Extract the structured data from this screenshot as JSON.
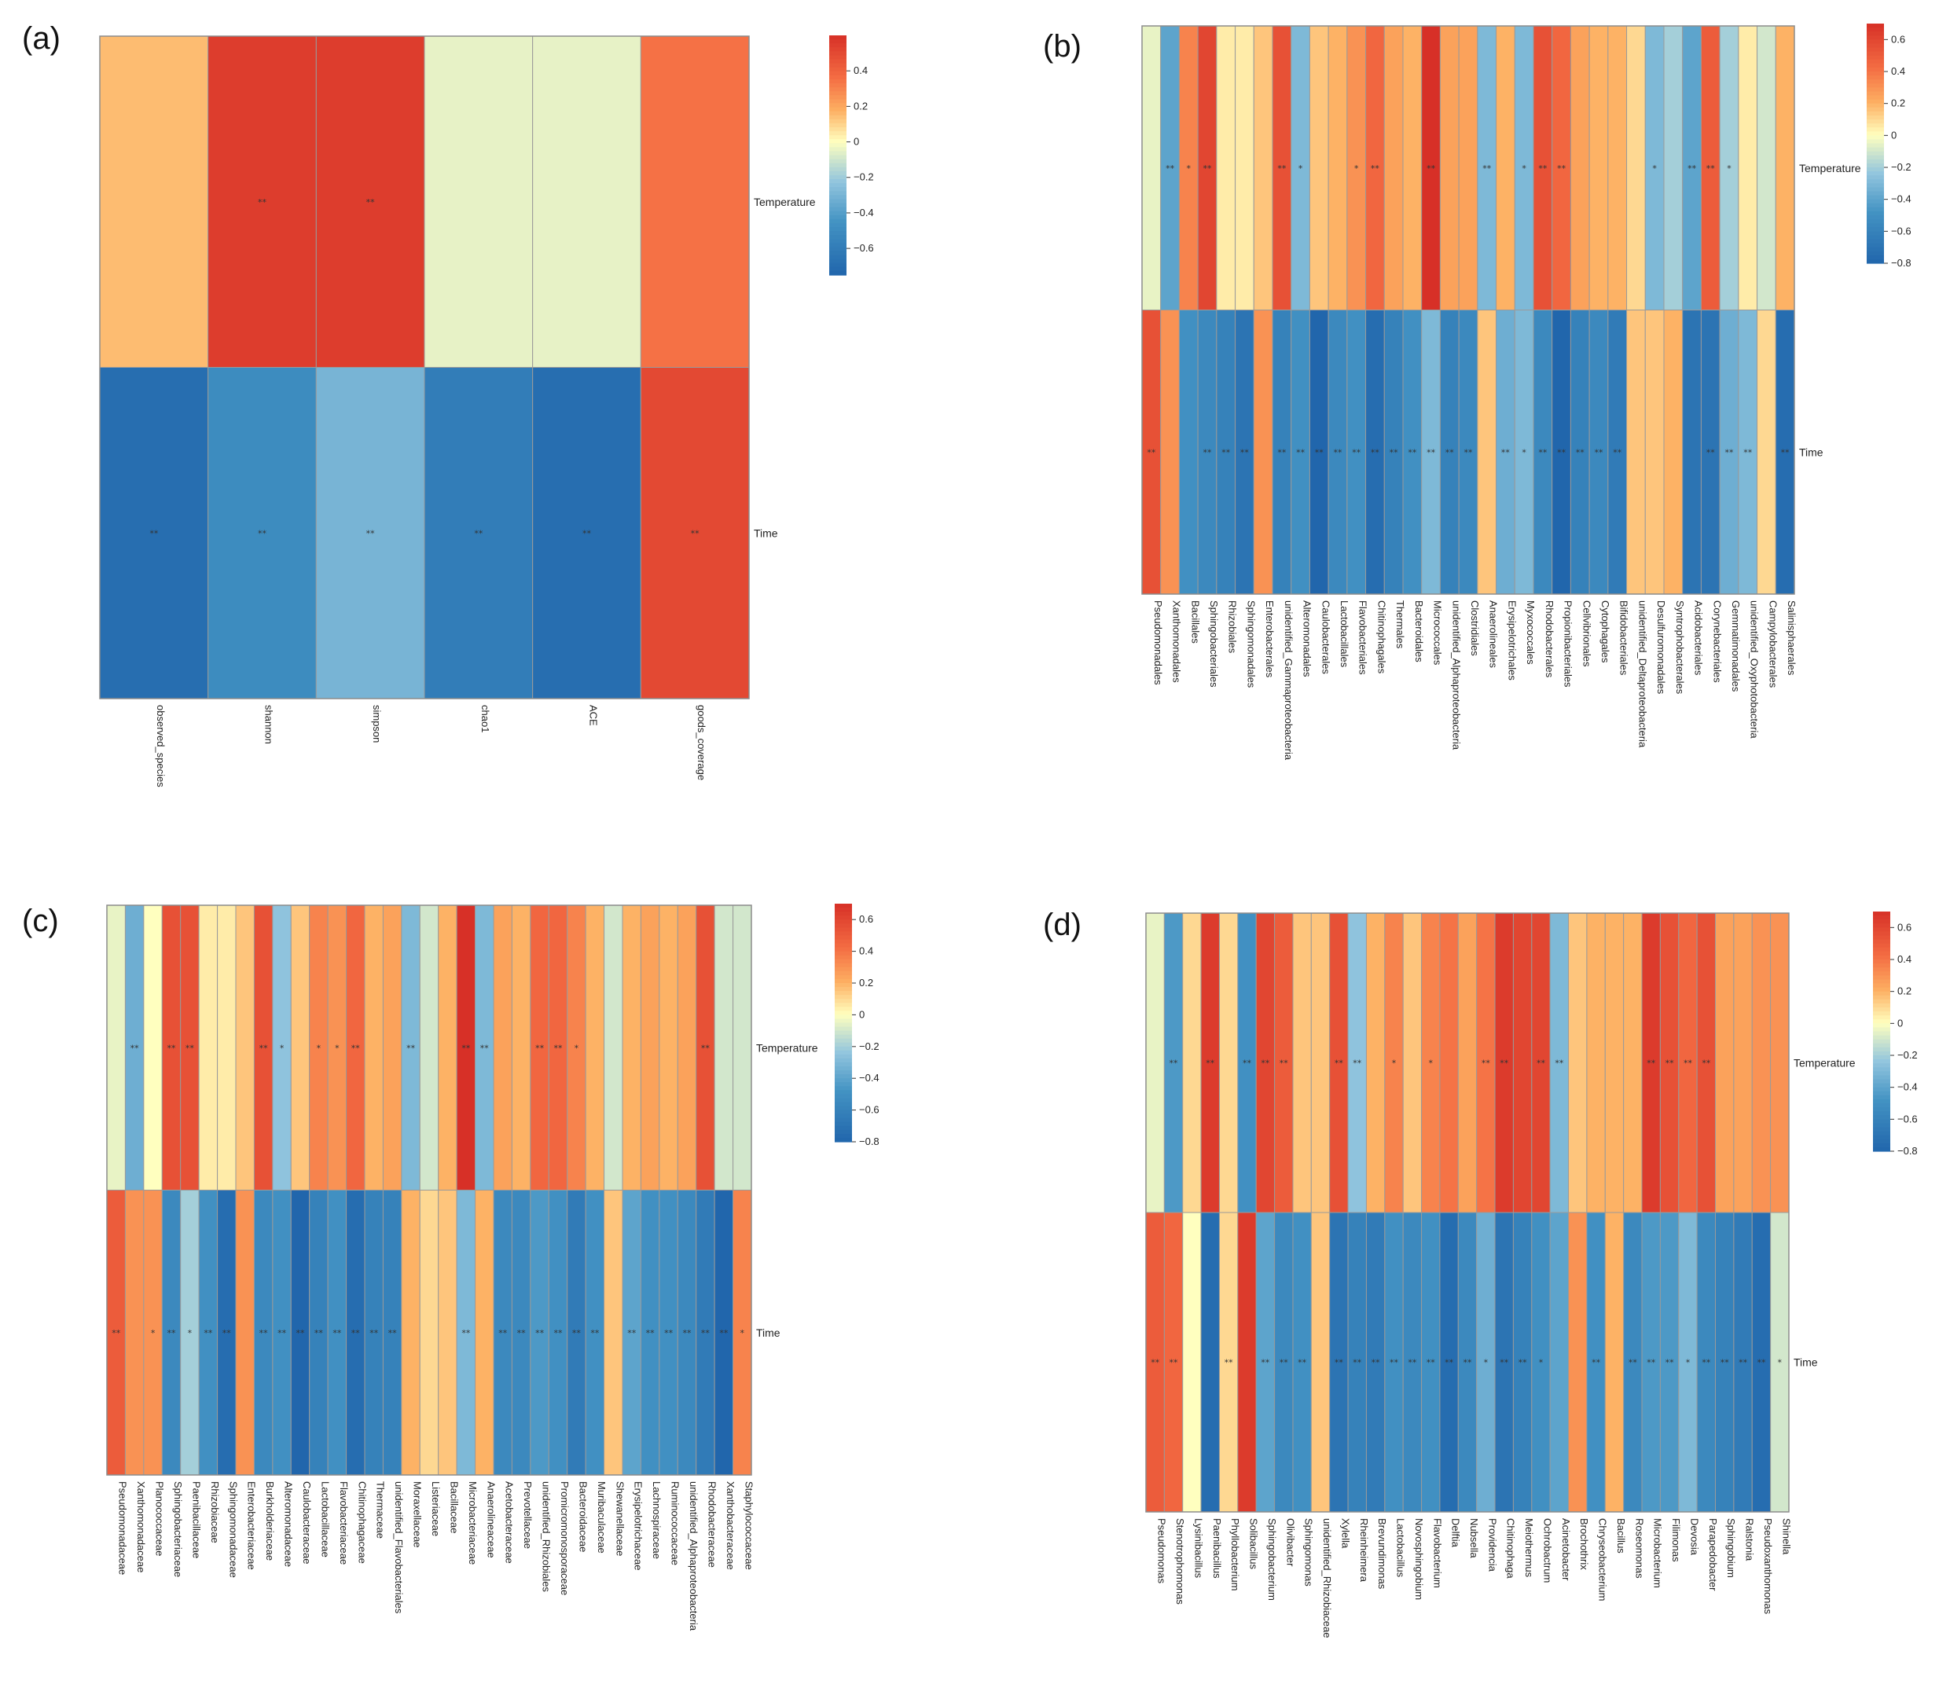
{
  "chart_data": [
    {
      "type": "heatmap",
      "panel": "(a)",
      "rows": [
        "Temperature",
        "Time"
      ],
      "columns": [
        "observed_species",
        "shannon",
        "simpson",
        "chao1",
        "ACE",
        "goods_coverage"
      ],
      "values": [
        [
          0.15,
          0.55,
          0.55,
          -0.05,
          -0.05,
          0.35
        ],
        [
          -0.7,
          -0.5,
          -0.3,
          -0.6,
          -0.7,
          0.5
        ]
      ],
      "significance": [
        [
          "",
          "**",
          "**",
          "",
          "",
          ""
        ],
        [
          "**",
          "**",
          "**",
          "**",
          "**",
          "**"
        ]
      ],
      "colorbar": {
        "ticks": [
          0.4,
          0.2,
          0,
          -0.2,
          -0.4,
          -0.6
        ],
        "tick_labels": [
          "0.4",
          "0.2",
          "0",
          "−0.2",
          "−0.4",
          "−0.6"
        ],
        "range": [
          -0.75,
          0.6
        ]
      }
    },
    {
      "type": "heatmap",
      "panel": "(b)",
      "rows": [
        "Temperature",
        "Time"
      ],
      "columns": [
        "Pseudomonadales",
        "Xanthomonadales",
        "Bacillales",
        "Sphingobacteriales",
        "Rhizobiales",
        "Sphingomonadales",
        "Enterobacterales",
        "unidentified_Gammaproteobacteria",
        "Alteromonadales",
        "Caulobacterales",
        "Lactobacillales",
        "Flavobacteriales",
        "Chitinophagales",
        "Thermales",
        "Bacteroidales",
        "Micrococcales",
        "unidentified_Alphaproteobacteria",
        "Clostridiales",
        "Anaerolineales",
        "Erysipelotrichales",
        "Myxococcales",
        "Rhodobacterales",
        "Propionibacteriales",
        "Cellvibrionales",
        "Cytophagales",
        "Bifidobacteriales",
        "unidentified_Deltaproteobacteria",
        "Desulfuromonadales",
        "Syntrophobacterales",
        "Acidobacteriales",
        "Corynebacteriales",
        "Gemmatimonadales",
        "unidentified_Oxyphotobacteria",
        "Campylobacterales",
        "Salinisphaerales"
      ],
      "values": [
        [
          -0.05,
          -0.4,
          0.35,
          0.6,
          0.05,
          0.05,
          0.15,
          0.55,
          -0.3,
          0.15,
          0.2,
          0.3,
          0.45,
          0.25,
          0.2,
          0.7,
          0.25,
          0.25,
          -0.3,
          0.2,
          -0.3,
          0.55,
          0.45,
          0.25,
          0.2,
          0.2,
          0.1,
          -0.3,
          -0.2,
          -0.4,
          0.5,
          -0.2,
          0.05,
          -0.1,
          0.2
        ],
        [
          0.55,
          0.3,
          -0.5,
          -0.55,
          -0.6,
          -0.7,
          0.3,
          -0.6,
          -0.5,
          -0.8,
          -0.55,
          -0.5,
          -0.75,
          -0.6,
          -0.5,
          -0.3,
          -0.6,
          -0.55,
          0.15,
          -0.35,
          -0.3,
          -0.55,
          -0.8,
          -0.6,
          -0.55,
          -0.65,
          0.15,
          0.15,
          0.2,
          -0.7,
          -0.7,
          -0.35,
          -0.3,
          0.1,
          -0.75
        ]
      ],
      "significance": [
        [
          "",
          "**",
          "*",
          "**",
          "",
          "",
          "",
          "**",
          "*",
          "",
          "",
          "*",
          "**",
          "",
          "",
          "**",
          "",
          "",
          "**",
          "",
          "*",
          "**",
          "**",
          "",
          "",
          "",
          "",
          "*",
          "",
          "**",
          "**",
          "*",
          "",
          "",
          ""
        ],
        [
          "**",
          "",
          "",
          "**",
          "**",
          "**",
          "",
          "**",
          "**",
          "**",
          "**",
          "**",
          "**",
          "**",
          "**",
          "**",
          "**",
          "**",
          "",
          "**",
          "*",
          "**",
          "**",
          "**",
          "**",
          "**",
          "",
          "",
          "",
          "",
          "**",
          "**",
          "**",
          "",
          "**"
        ]
      ],
      "colorbar": {
        "ticks": [
          0.6,
          0.4,
          0.2,
          0,
          -0.2,
          -0.4,
          -0.6,
          -0.8
        ],
        "tick_labels": [
          "0.6",
          "0.4",
          "0.2",
          "0",
          "−0.2",
          "−0.4",
          "−0.6",
          "−0.8"
        ],
        "range": [
          -0.8,
          0.7
        ]
      }
    },
    {
      "type": "heatmap",
      "panel": "(c)",
      "rows": [
        "Temperature",
        "Time"
      ],
      "columns": [
        "Pseudomonadaceae",
        "Xanthomonadaceae",
        "Planococcaceae",
        "Sphingobacteriaceae",
        "Paenibacillaceae",
        "Rhizobiaceae",
        "Sphingomonadaceae",
        "Enterobacteriaceae",
        "Burkholderiaceae",
        "Alteromonadaceae",
        "Caulobacteraceae",
        "Lactobacillaceae",
        "Flavobacteriaceae",
        "Chitinophagaceae",
        "Thermaceae",
        "unidentified_Flavobacteriales",
        "Moraxellaceae",
        "Listeriaceae",
        "Bacillaceae",
        "Microbacteriaceae",
        "Anaerolineaceae",
        "Acetobacteraceae",
        "Prevotellaceae",
        "unidentified_Rhizobiales",
        "Promicromonosporaceae",
        "Bacteroidaceae",
        "Muribaculaceae",
        "Shewanellaceae",
        "Erysipelotrichaceae",
        "Lachnospiraceae",
        "Ruminococcaceae",
        "unidentified_Alphaproteobacteria",
        "Rhodobacteraceae",
        "Xanthobacteraceae",
        "Staphylococcaceae"
      ],
      "values": [
        [
          -0.05,
          -0.35,
          0.0,
          0.55,
          0.55,
          0.05,
          0.05,
          0.15,
          0.55,
          -0.25,
          0.15,
          0.35,
          0.3,
          0.45,
          0.2,
          0.25,
          -0.3,
          -0.1,
          0.2,
          0.7,
          -0.3,
          0.25,
          0.2,
          0.45,
          0.45,
          0.35,
          0.2,
          -0.1,
          0.2,
          0.25,
          0.2,
          0.25,
          0.55,
          -0.1,
          -0.1
        ],
        [
          0.5,
          0.3,
          0.3,
          -0.55,
          -0.2,
          -0.5,
          -0.75,
          0.3,
          -0.55,
          -0.5,
          -0.8,
          -0.6,
          -0.5,
          -0.75,
          -0.6,
          -0.6,
          0.2,
          0.1,
          0.15,
          -0.3,
          0.2,
          -0.55,
          -0.55,
          -0.45,
          -0.5,
          -0.65,
          -0.5,
          0.15,
          -0.4,
          -0.5,
          -0.5,
          -0.55,
          -0.65,
          -0.8,
          0.35
        ]
      ],
      "significance": [
        [
          "",
          "**",
          "",
          "**",
          "**",
          "",
          "",
          "",
          "**",
          "*",
          "",
          "*",
          "*",
          "**",
          "",
          "",
          "**",
          "",
          "",
          "**",
          "**",
          "",
          "",
          "**",
          "**",
          "*",
          "",
          "",
          "",
          "",
          "",
          "",
          "**",
          "",
          ""
        ],
        [
          "**",
          "",
          "*",
          "**",
          "*",
          "**",
          "**",
          "",
          "**",
          "**",
          "**",
          "**",
          "**",
          "**",
          "**",
          "**",
          "",
          "",
          "",
          "**",
          "",
          "**",
          "**",
          "**",
          "**",
          "**",
          "**",
          "",
          "**",
          "**",
          "**",
          "**",
          "**",
          "**",
          "*"
        ]
      ],
      "colorbar": {
        "ticks": [
          0.6,
          0.4,
          0.2,
          0,
          -0.2,
          -0.4,
          -0.6,
          -0.8
        ],
        "tick_labels": [
          "0.6",
          "0.4",
          "0.2",
          "0",
          "−0.2",
          "−0.4",
          "−0.6",
          "−0.8"
        ],
        "range": [
          -0.8,
          0.7
        ]
      }
    },
    {
      "type": "heatmap",
      "panel": "(d)",
      "rows": [
        "Temperature",
        "Time"
      ],
      "columns": [
        "Pseudomonas",
        "Stenotrophomonas",
        "Lysinibacillus",
        "Paenibacillus",
        "Phyllobacterium",
        "Solibacillus",
        "Sphingobacterium",
        "Olivibacter",
        "Sphingomonas",
        "unidentified_Rhizobiaceae",
        "Xylella",
        "Rheinheimera",
        "Brevundimonas",
        "Lactobacillus",
        "Novosphingobium",
        "Flavobacterium",
        "Delftia",
        "Nubsella",
        "Providencia",
        "Chitinophaga",
        "Meiothermus",
        "Ochrobactrum",
        "Acinetobacter",
        "Brochothrix",
        "Chryseobacterium",
        "Bacillus",
        "Roseomonas",
        "Microbacterium",
        "Filimonas",
        "Devosia",
        "Parapedobacter",
        "Sphingobium",
        "Ralstonia",
        "Pseudoxanthomonas",
        "Shinella"
      ],
      "values": [
        [
          -0.05,
          -0.45,
          0.1,
          0.65,
          0.1,
          -0.5,
          0.6,
          0.5,
          0.15,
          0.15,
          0.55,
          -0.25,
          0.2,
          0.35,
          0.15,
          0.35,
          0.4,
          0.25,
          0.4,
          0.65,
          0.6,
          0.6,
          -0.3,
          0.15,
          0.2,
          0.2,
          0.2,
          0.65,
          0.55,
          0.45,
          0.55,
          0.25,
          0.25,
          0.3,
          0.3
        ],
        [
          0.5,
          0.45,
          0.0,
          -0.75,
          0.1,
          0.65,
          -0.4,
          -0.55,
          -0.5,
          0.15,
          -0.7,
          -0.6,
          -0.65,
          -0.5,
          -0.55,
          -0.5,
          -0.75,
          -0.55,
          -0.35,
          -0.7,
          -0.6,
          -0.5,
          -0.4,
          0.3,
          -0.5,
          0.2,
          -0.55,
          -0.45,
          -0.45,
          -0.3,
          -0.55,
          -0.6,
          -0.65,
          -0.75,
          -0.1
        ]
      ],
      "significance": [
        [
          "",
          "**",
          "",
          "**",
          "",
          "**",
          "**",
          "**",
          "",
          "",
          "**",
          "**",
          "",
          "*",
          "",
          "*",
          "",
          "",
          "**",
          "**",
          "",
          "**",
          "**",
          "",
          "",
          "",
          "",
          "**",
          "**",
          "**",
          "**",
          "",
          "",
          "",
          ""
        ],
        [
          "**",
          "**",
          "",
          "",
          "**",
          "",
          "**",
          "**",
          "**",
          "",
          "**",
          "**",
          "**",
          "**",
          "**",
          "**",
          "**",
          "**",
          "*",
          "**",
          "**",
          "*",
          "",
          "",
          "**",
          "",
          "**",
          "**",
          "**",
          "*",
          "**",
          "**",
          "**",
          "**",
          "*"
        ]
      ],
      "colorbar": {
        "ticks": [
          0.6,
          0.4,
          0.2,
          0,
          -0.2,
          -0.4,
          -0.6,
          -0.8
        ],
        "tick_labels": [
          "0.6",
          "0.4",
          "0.2",
          "0",
          "−0.2",
          "−0.4",
          "−0.6",
          "−0.8"
        ],
        "range": [
          -0.8,
          0.7
        ]
      }
    }
  ]
}
